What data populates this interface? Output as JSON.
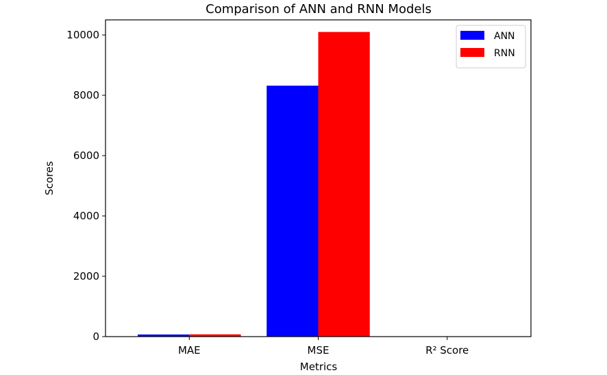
{
  "chart_data": {
    "type": "bar",
    "title": "Comparison of ANN and RNN Models",
    "xlabel": "Metrics",
    "ylabel": "Scores",
    "categories": [
      "MAE",
      "MSE",
      "R² Score"
    ],
    "series": [
      {
        "name": "ANN",
        "color": "#0000ff",
        "values": [
          70,
          8320,
          0.2
        ]
      },
      {
        "name": "RNN",
        "color": "#ff0000",
        "values": [
          75,
          10100,
          0.1
        ]
      }
    ],
    "ylim": [
      0,
      10500
    ],
    "yticks": [
      0,
      2000,
      4000,
      6000,
      8000,
      10000
    ],
    "grid": false,
    "legend_position": "top-right"
  }
}
